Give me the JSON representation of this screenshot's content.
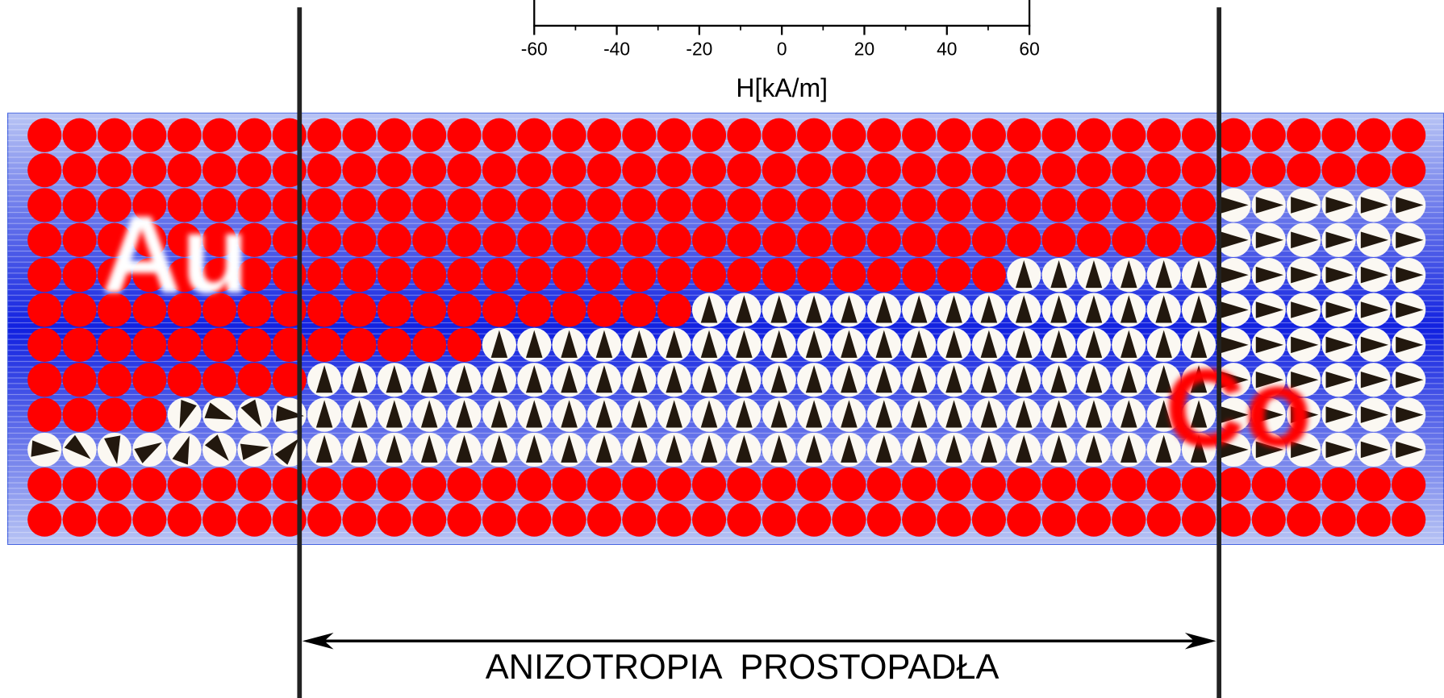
{
  "axis": {
    "label": "H[kA/m]",
    "xlim": [
      -60,
      60
    ],
    "ticks": [
      -60,
      -40,
      -20,
      0,
      20,
      40,
      60
    ]
  },
  "labels": {
    "au": "Au",
    "co": "Co",
    "anisotropy": "ANIZOTROPIA  PROSTOPADŁA"
  }
}
